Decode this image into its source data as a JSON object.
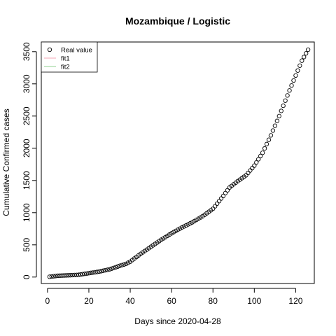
{
  "chart_data": {
    "type": "scatter",
    "title": "Mozambique / Logistic",
    "xlabel": "Days since 2020-04-28",
    "ylabel": "Cumulative Confirmed cases",
    "xlim": [
      -3,
      129
    ],
    "ylim": [
      -100,
      3650
    ],
    "xticks": [
      0,
      20,
      40,
      60,
      80,
      100,
      120
    ],
    "yticks": [
      0,
      500,
      1000,
      1500,
      2000,
      2500,
      3000,
      3500
    ],
    "grid": false,
    "legend": {
      "position": "top-left",
      "entries": [
        {
          "label": "Real value",
          "marker": "open-circle",
          "color": "#000000"
        },
        {
          "label": "fit1",
          "marker": "line",
          "color": "#f4a6b4"
        },
        {
          "label": "fit2",
          "marker": "line",
          "color": "#8fd18f"
        }
      ]
    },
    "series": [
      {
        "name": "Real value",
        "marker": "open-circle",
        "color": "#000000",
        "anchors": [
          [
            1,
            5
          ],
          [
            5,
            20
          ],
          [
            10,
            27
          ],
          [
            15,
            35
          ],
          [
            20,
            60
          ],
          [
            25,
            85
          ],
          [
            30,
            120
          ],
          [
            35,
            175
          ],
          [
            38,
            205
          ],
          [
            40,
            240
          ],
          [
            45,
            360
          ],
          [
            50,
            470
          ],
          [
            55,
            580
          ],
          [
            60,
            680
          ],
          [
            65,
            770
          ],
          [
            70,
            850
          ],
          [
            75,
            945
          ],
          [
            80,
            1060
          ],
          [
            85,
            1260
          ],
          [
            88,
            1390
          ],
          [
            92,
            1490
          ],
          [
            96,
            1580
          ],
          [
            100,
            1730
          ],
          [
            104,
            1930
          ],
          [
            108,
            2200
          ],
          [
            112,
            2500
          ],
          [
            116,
            2820
          ],
          [
            120,
            3130
          ],
          [
            123,
            3360
          ],
          [
            126,
            3530
          ]
        ]
      }
    ]
  }
}
